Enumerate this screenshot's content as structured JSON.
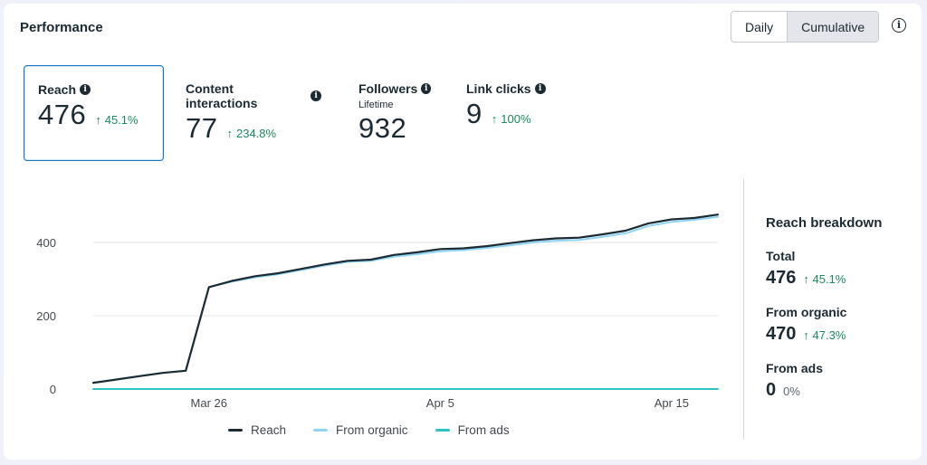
{
  "header": {
    "title": "Performance"
  },
  "toggle": {
    "daily": "Daily",
    "cumulative": "Cumulative",
    "active": "cumulative"
  },
  "metrics": [
    {
      "label": "Reach",
      "sub": "",
      "value": "476",
      "change": "45.1%",
      "selected": true
    },
    {
      "label": "Content interactions",
      "sub": "",
      "value": "77",
      "change": "234.8%",
      "selected": false
    },
    {
      "label": "Followers",
      "sub": "Lifetime",
      "value": "932",
      "change": "",
      "selected": false
    },
    {
      "label": "Link clicks",
      "sub": "",
      "value": "9",
      "change": "100%",
      "selected": false
    }
  ],
  "chart_data": {
    "type": "line",
    "title": "",
    "xlabel": "",
    "ylabel": "",
    "ylim": [
      0,
      500
    ],
    "yticks": [
      0,
      200,
      400
    ],
    "x": [
      "Mar 21",
      "Mar 22",
      "Mar 23",
      "Mar 24",
      "Mar 25",
      "Mar 26",
      "Mar 27",
      "Mar 28",
      "Mar 29",
      "Mar 30",
      "Mar 31",
      "Apr 1",
      "Apr 2",
      "Apr 3",
      "Apr 4",
      "Apr 5",
      "Apr 6",
      "Apr 7",
      "Apr 8",
      "Apr 9",
      "Apr 10",
      "Apr 11",
      "Apr 12",
      "Apr 13",
      "Apr 14",
      "Apr 15",
      "Apr 16",
      "Apr 17"
    ],
    "xtick_labels": [
      "Mar 26",
      "Apr 5",
      "Apr 15"
    ],
    "series": [
      {
        "name": "Reach",
        "color": "#1c2b33",
        "values": [
          17,
          26,
          35,
          44,
          50,
          278,
          295,
          308,
          316,
          328,
          340,
          350,
          353,
          366,
          373,
          382,
          384,
          390,
          398,
          406,
          411,
          413,
          422,
          432,
          452,
          463,
          467,
          476
        ]
      },
      {
        "name": "From organic",
        "color": "#8fd4f5",
        "values": [
          17,
          26,
          35,
          44,
          50,
          278,
          293,
          305,
          313,
          325,
          337,
          347,
          350,
          361,
          368,
          376,
          379,
          385,
          392,
          400,
          405,
          407,
          415,
          425,
          445,
          456,
          462,
          470
        ]
      },
      {
        "name": "From ads",
        "color": "#2ec4c4",
        "values": [
          0,
          0,
          0,
          0,
          0,
          0,
          0,
          0,
          0,
          0,
          0,
          0,
          0,
          0,
          0,
          0,
          0,
          0,
          0,
          0,
          0,
          0,
          0,
          0,
          0,
          0,
          0,
          0
        ]
      }
    ],
    "legend_position": "bottom"
  },
  "breakdown": {
    "title": "Reach breakdown",
    "items": [
      {
        "label": "Total",
        "value": "476",
        "change": "45.1%",
        "arrow": true
      },
      {
        "label": "From organic",
        "value": "470",
        "change": "47.3%",
        "arrow": true
      },
      {
        "label": "From ads",
        "value": "0",
        "change": "0%",
        "arrow": false
      }
    ]
  },
  "colors": {
    "accent": "#1877c9",
    "positive": "#1a8a5a",
    "text": "#1c2b33"
  }
}
